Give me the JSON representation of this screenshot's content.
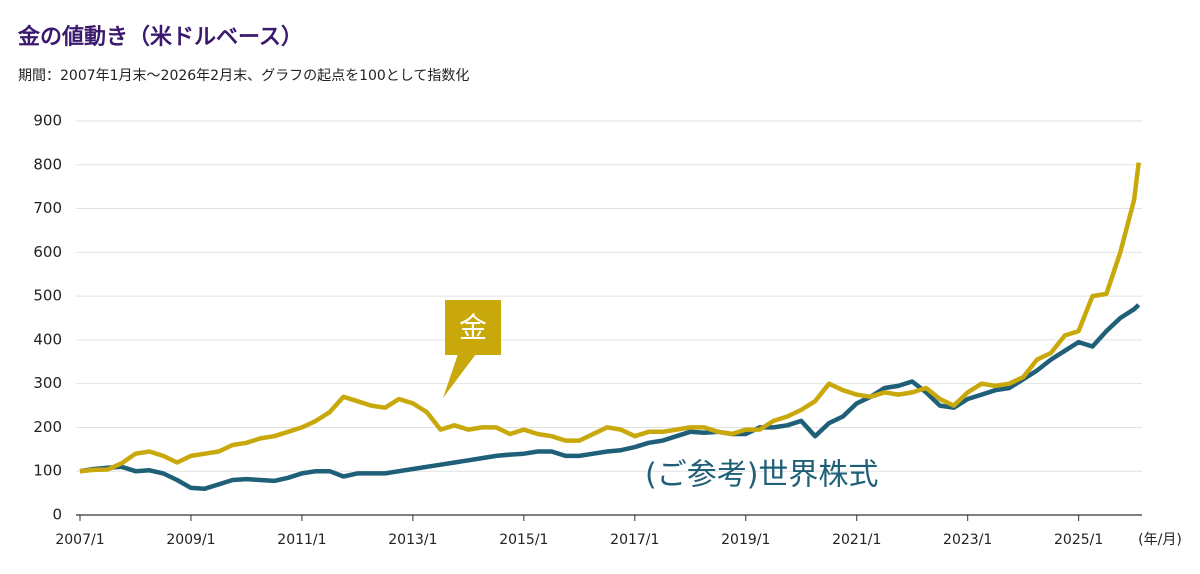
{
  "chart_data": {
    "type": "line",
    "title": "金の値動き（米ドルベース）",
    "subtitle": "期間：2007年1月末〜2026年2月末、グラフの起点を100として指数化",
    "x_unit_label": "(年/月)",
    "x": [
      2007,
      2007.25,
      2007.5,
      2007.75,
      2008,
      2008.25,
      2008.5,
      2008.75,
      2009,
      2009.25,
      2009.5,
      2009.75,
      2010,
      2010.25,
      2010.5,
      2010.75,
      2011,
      2011.25,
      2011.5,
      2011.75,
      2012,
      2012.25,
      2012.5,
      2012.75,
      2013,
      2013.25,
      2013.5,
      2013.75,
      2014,
      2014.25,
      2014.5,
      2014.75,
      2015,
      2015.25,
      2015.5,
      2015.75,
      2016,
      2016.25,
      2016.5,
      2016.75,
      2017,
      2017.25,
      2017.5,
      2017.75,
      2018,
      2018.25,
      2018.5,
      2018.75,
      2019,
      2019.25,
      2019.5,
      2019.75,
      2020,
      2020.25,
      2020.5,
      2020.75,
      2021,
      2021.25,
      2021.5,
      2021.75,
      2022,
      2022.25,
      2022.5,
      2022.75,
      2023,
      2023.25,
      2023.5,
      2023.75,
      2024,
      2024.25,
      2024.5,
      2024.75,
      2025,
      2025.25,
      2025.5,
      2025.75,
      2026,
      2026.083
    ],
    "series": [
      {
        "name": "金",
        "color": "#c9a80b",
        "values": [
          100,
          103,
          104,
          118,
          140,
          145,
          135,
          120,
          135,
          140,
          145,
          160,
          165,
          175,
          180,
          190,
          200,
          215,
          235,
          270,
          260,
          250,
          245,
          265,
          255,
          235,
          195,
          205,
          195,
          200,
          200,
          185,
          195,
          185,
          180,
          170,
          170,
          185,
          200,
          195,
          180,
          190,
          190,
          195,
          200,
          200,
          190,
          185,
          195,
          195,
          215,
          225,
          240,
          260,
          300,
          285,
          275,
          270,
          280,
          275,
          280,
          290,
          265,
          250,
          280,
          300,
          295,
          300,
          315,
          355,
          370,
          410,
          420,
          500,
          505,
          600,
          720,
          805
        ]
      },
      {
        "name": "(ご参考)世界株式",
        "color": "#1f5f78",
        "values": [
          100,
          105,
          108,
          110,
          100,
          102,
          95,
          80,
          62,
          60,
          70,
          80,
          82,
          80,
          78,
          85,
          95,
          100,
          100,
          88,
          95,
          95,
          95,
          100,
          105,
          110,
          115,
          120,
          125,
          130,
          135,
          138,
          140,
          145,
          145,
          135,
          135,
          140,
          145,
          148,
          155,
          165,
          170,
          180,
          190,
          188,
          190,
          185,
          185,
          200,
          200,
          205,
          215,
          180,
          210,
          225,
          255,
          270,
          290,
          295,
          305,
          280,
          250,
          245,
          265,
          275,
          285,
          290,
          310,
          330,
          355,
          375,
          395,
          385,
          420,
          450,
          470,
          480
        ]
      }
    ],
    "xlim": [
      2007,
      2026.25
    ],
    "xticks": [
      {
        "value": 2007,
        "label": "2007/1"
      },
      {
        "value": 2009,
        "label": "2009/1"
      },
      {
        "value": 2011,
        "label": "2011/1"
      },
      {
        "value": 2013,
        "label": "2013/1"
      },
      {
        "value": 2015,
        "label": "2015/1"
      },
      {
        "value": 2017,
        "label": "2017/1"
      },
      {
        "value": 2019,
        "label": "2019/1"
      },
      {
        "value": 2021,
        "label": "2021/1"
      },
      {
        "value": 2023,
        "label": "2023/1"
      },
      {
        "value": 2025,
        "label": "2025/1"
      }
    ],
    "ylim": [
      0,
      900
    ],
    "yticks": [
      0,
      100,
      200,
      300,
      400,
      500,
      600,
      700,
      800,
      900
    ],
    "grid": true
  }
}
